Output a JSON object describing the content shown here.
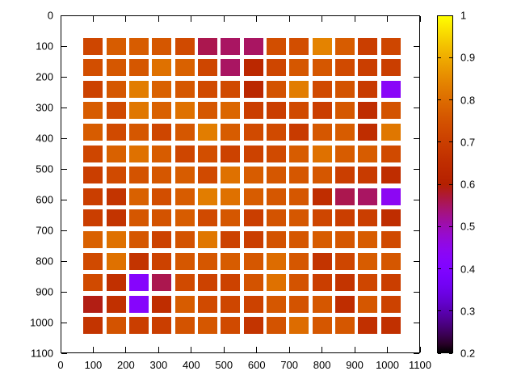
{
  "chart_data": {
    "type": "heatmap",
    "title": "",
    "xlabel": "",
    "ylabel": "",
    "xlim": [
      0,
      1100
    ],
    "ylim": [
      0,
      1100
    ],
    "y_axis_inverted": true,
    "grid": false,
    "x_ticks": [
      "0",
      "100",
      "200",
      "300",
      "400",
      "500",
      "600",
      "700",
      "800",
      "900",
      "1000",
      "1100"
    ],
    "y_ticks": [
      "0",
      "100",
      "200",
      "300",
      "400",
      "500",
      "600",
      "700",
      "800",
      "900",
      "1000",
      "1100"
    ],
    "x_tick_values": [
      0,
      100,
      200,
      300,
      400,
      500,
      600,
      700,
      800,
      900,
      1000,
      1100
    ],
    "y_tick_values": [
      0,
      100,
      200,
      300,
      400,
      500,
      600,
      700,
      800,
      900,
      1000,
      1100
    ],
    "x": [
      100,
      170,
      240,
      310,
      380,
      450,
      520,
      590,
      660,
      730,
      800,
      870,
      940,
      1010
    ],
    "y": [
      100,
      170,
      240,
      310,
      380,
      450,
      520,
      590,
      660,
      730,
      800,
      870,
      940,
      1010
    ],
    "values": [
      [
        0.72,
        0.77,
        0.77,
        0.76,
        0.73,
        0.56,
        0.55,
        0.55,
        0.74,
        0.74,
        0.84,
        0.77,
        0.7,
        0.72
      ],
      [
        0.74,
        0.76,
        0.76,
        0.81,
        0.78,
        0.72,
        0.55,
        0.63,
        0.72,
        0.76,
        0.76,
        0.73,
        0.7,
        0.7
      ],
      [
        0.71,
        0.76,
        0.83,
        0.78,
        0.76,
        0.73,
        0.73,
        0.63,
        0.75,
        0.83,
        0.73,
        0.75,
        0.69,
        0.43
      ],
      [
        0.77,
        0.73,
        0.82,
        0.78,
        0.81,
        0.76,
        0.79,
        0.7,
        0.7,
        0.73,
        0.7,
        0.76,
        0.65,
        0.75
      ],
      [
        0.77,
        0.73,
        0.76,
        0.72,
        0.76,
        0.83,
        0.77,
        0.73,
        0.73,
        0.69,
        0.76,
        0.77,
        0.65,
        0.82
      ],
      [
        0.72,
        0.78,
        0.81,
        0.77,
        0.72,
        0.74,
        0.71,
        0.71,
        0.73,
        0.77,
        0.81,
        0.77,
        0.77,
        0.73
      ],
      [
        0.7,
        0.73,
        0.75,
        0.76,
        0.77,
        0.73,
        0.81,
        0.77,
        0.76,
        0.76,
        0.76,
        0.7,
        0.69,
        0.65
      ],
      [
        0.7,
        0.67,
        0.78,
        0.74,
        0.77,
        0.83,
        0.81,
        0.77,
        0.76,
        0.76,
        0.65,
        0.56,
        0.55,
        0.44
      ],
      [
        0.7,
        0.67,
        0.76,
        0.75,
        0.77,
        0.73,
        0.76,
        0.7,
        0.75,
        0.76,
        0.72,
        0.7,
        0.7,
        0.65
      ],
      [
        0.78,
        0.81,
        0.76,
        0.71,
        0.75,
        0.82,
        0.71,
        0.7,
        0.75,
        0.76,
        0.77,
        0.76,
        0.77,
        0.73
      ],
      [
        0.73,
        0.81,
        0.67,
        0.71,
        0.76,
        0.76,
        0.77,
        0.76,
        0.8,
        0.76,
        0.67,
        0.72,
        0.77,
        0.76
      ],
      [
        0.73,
        0.66,
        0.42,
        0.56,
        0.73,
        0.71,
        0.71,
        0.75,
        0.81,
        0.75,
        0.7,
        0.67,
        0.72,
        0.7
      ],
      [
        0.59,
        0.66,
        0.42,
        0.65,
        0.77,
        0.73,
        0.72,
        0.71,
        0.76,
        0.75,
        0.76,
        0.65,
        0.76,
        0.71
      ],
      [
        0.67,
        0.75,
        0.7,
        0.7,
        0.75,
        0.76,
        0.73,
        0.67,
        0.75,
        0.8,
        0.76,
        0.76,
        0.66,
        0.66
      ]
    ],
    "colorbar": {
      "min": 0.2,
      "max": 1,
      "tick_labels": [
        "1",
        "0.9",
        "0.8",
        "0.7",
        "0.6",
        "0.5",
        "0.4",
        "0.3",
        "0.2"
      ],
      "tick_values": [
        1,
        0.9,
        0.8,
        0.7,
        0.6,
        0.5,
        0.4,
        0.3,
        0.2
      ],
      "position": "right",
      "palette": "gnuplot rgbformulae 7,5,15 (black - purple - red - orange - yellow)",
      "palette_key_colors": {
        "0.2": "#000000",
        "0.3": "#3f0260",
        "0.4": "#8000e4",
        "0.5": "#9c0fae",
        "0.6": "#b42000",
        "0.7": "#ca3e00",
        "0.8": "#dd6c00",
        "0.9": "#efab00",
        "1.0": "#ffff00"
      }
    },
    "legend": null,
    "border_color": "#000000",
    "background_color": "#ffffff"
  }
}
